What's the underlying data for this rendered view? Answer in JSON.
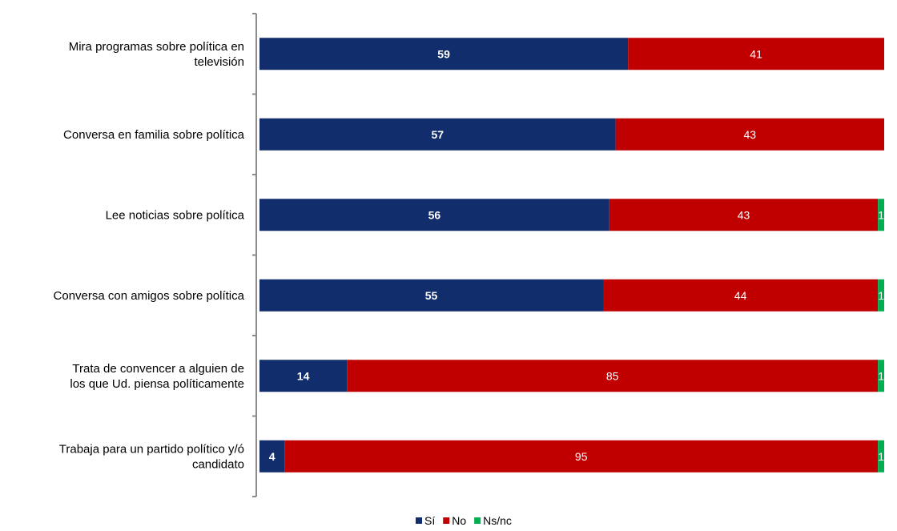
{
  "chart_data": {
    "type": "bar",
    "orientation": "horizontal",
    "stacked": true,
    "categories": [
      [
        "Mira programas sobre política en",
        "televisión"
      ],
      [
        "Conversa en familia sobre política"
      ],
      [
        "Lee noticias sobre política"
      ],
      [
        "Conversa con amigos sobre política"
      ],
      [
        "Trata de convencer a alguien de",
        "los que Ud. piensa políticamente"
      ],
      [
        "Trabaja para un partido político y/ó",
        "candidato"
      ]
    ],
    "series": [
      {
        "name": "Sí",
        "color": "#112d6b",
        "values": [
          59,
          57,
          56,
          55,
          14,
          4
        ]
      },
      {
        "name": "No",
        "color": "#c00000",
        "values": [
          41,
          43,
          43,
          44,
          85,
          95
        ]
      },
      {
        "name": "Ns/nc",
        "color": "#00b050",
        "values": [
          0,
          0,
          1,
          1,
          1,
          1
        ]
      }
    ],
    "xlim": [
      0,
      100
    ],
    "legend_position": "bottom",
    "grid": false
  }
}
